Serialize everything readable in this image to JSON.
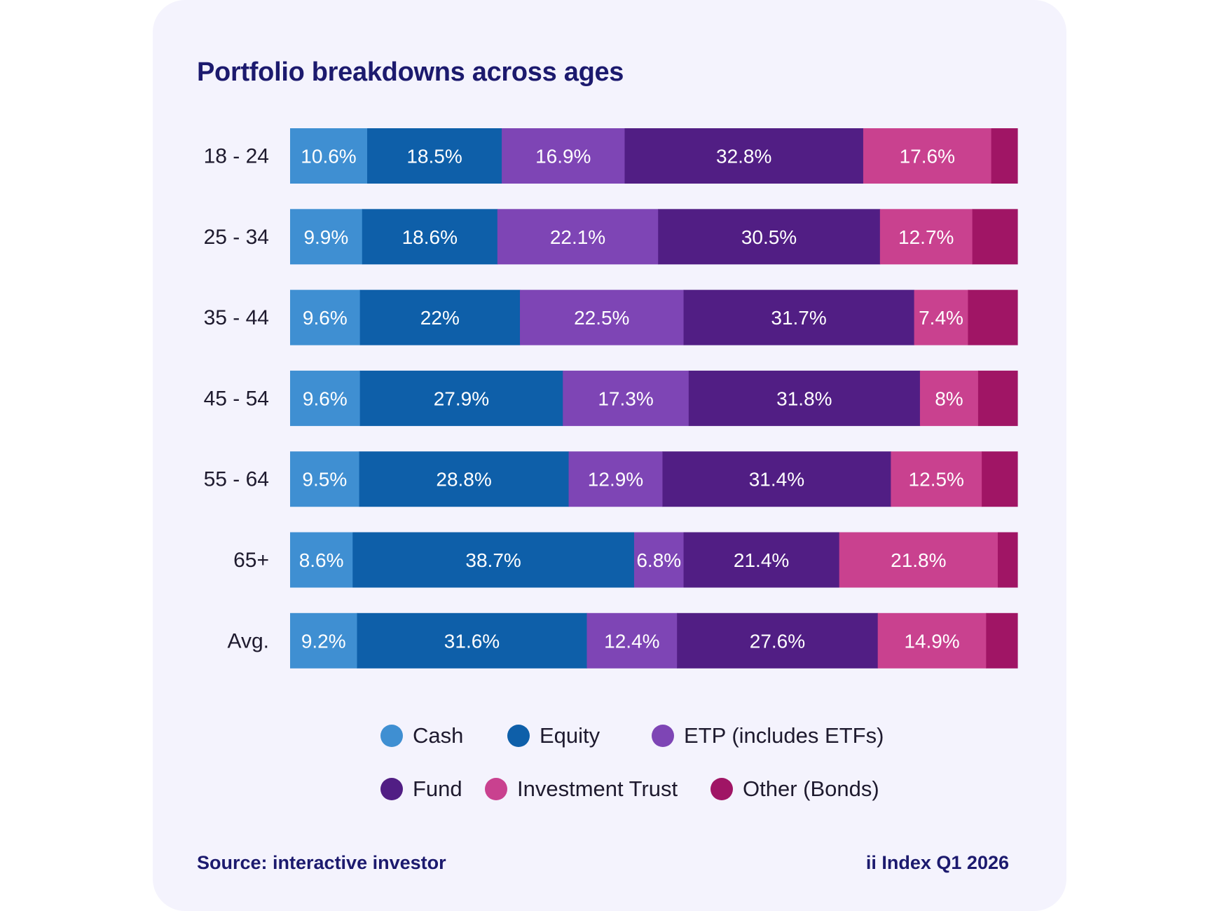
{
  "title": "Portfolio breakdowns across ages",
  "footer": {
    "source": "Source: interactive investor",
    "edition": "ii Index Q1 2026"
  },
  "colors": {
    "Cash": "#3f8fd2",
    "Equity": "#0e5fa9",
    "ETP (includes ETFs)": "#7e45b5",
    "Fund": "#511e84",
    "Investment Trust": "#c9418f",
    "Other (Bonds)": "#a01565"
  },
  "chart_data": {
    "type": "bar",
    "orientation": "horizontal",
    "stacked": true,
    "title": "Portfolio breakdowns across ages",
    "categories": [
      "18 - 24",
      "25 - 34",
      "35 - 44",
      "45 - 54",
      "55 - 64",
      "65+",
      "Avg."
    ],
    "series": [
      {
        "name": "Cash",
        "values": [
          10.6,
          9.9,
          9.6,
          9.6,
          9.5,
          8.6,
          9.2
        ],
        "labels": [
          "10.6%",
          "9.9%",
          "9.6%",
          "9.6%",
          "9.5%",
          "8.6%",
          "9.2%"
        ]
      },
      {
        "name": "Equity",
        "values": [
          18.5,
          18.6,
          22,
          27.9,
          28.8,
          38.7,
          31.6
        ],
        "labels": [
          "18.5%",
          "18.6%",
          "22%",
          "27.9%",
          "28.8%",
          "38.7%",
          "31.6%"
        ]
      },
      {
        "name": "ETP (includes ETFs)",
        "values": [
          16.9,
          22.1,
          22.5,
          17.3,
          12.9,
          6.8,
          12.4
        ],
        "labels": [
          "16.9%",
          "22.1%",
          "22.5%",
          "17.3%",
          "12.9%",
          "6.8%",
          "12.4%"
        ]
      },
      {
        "name": "Fund",
        "values": [
          32.8,
          30.5,
          31.7,
          31.8,
          31.4,
          21.4,
          27.6
        ],
        "labels": [
          "32.8%",
          "30.5%",
          "31.7%",
          "31.8%",
          "31.4%",
          "21.4%",
          "27.6%"
        ]
      },
      {
        "name": "Investment Trust",
        "values": [
          17.6,
          12.7,
          7.4,
          8,
          12.5,
          21.8,
          14.9
        ],
        "labels": [
          "17.6%",
          "12.7%",
          "7.4%",
          "8%",
          "12.5%",
          "21.8%",
          "14.9%"
        ]
      },
      {
        "name": "Other (Bonds)",
        "values": [
          3.6,
          6.2,
          6.8,
          5.4,
          4.9,
          2.7,
          4.3
        ],
        "labels": [
          "",
          "",
          "",
          "",
          "",
          "",
          ""
        ]
      }
    ],
    "xlim": [
      0,
      100
    ],
    "legend": "bottom",
    "grid": false
  }
}
